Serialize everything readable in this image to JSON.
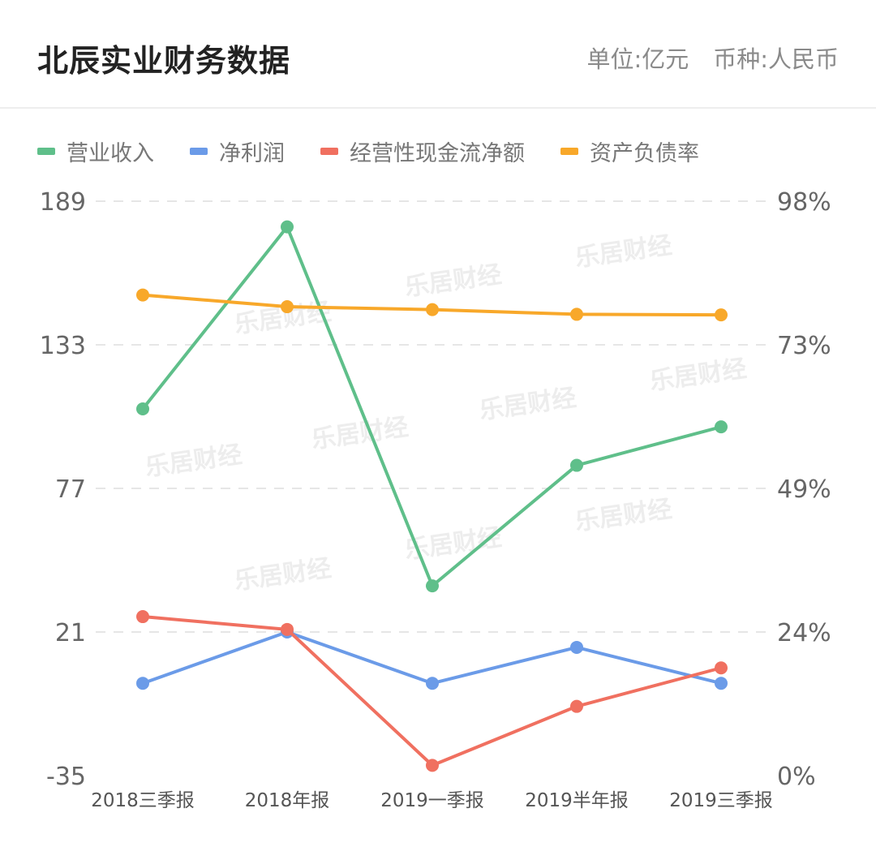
{
  "header": {
    "title": "北辰实业财务数据",
    "unit": "单位:亿元",
    "currency": "币种:人民币"
  },
  "watermark": "乐居财经",
  "colors": {
    "revenue": "#5fbf8a",
    "net_profit": "#6b9be8",
    "cash_flow": "#f07060",
    "debt_ratio": "#f8a82a",
    "grid": "#e6e6e6",
    "axis_text": "#666666"
  },
  "chart_data": {
    "type": "line",
    "categories": [
      "2018三季报",
      "2018年报",
      "2019一季报",
      "2019半年报",
      "2019三季报"
    ],
    "y_left": {
      "ticks": [
        "189",
        "133",
        "77",
        "21",
        "-35"
      ],
      "min": -35,
      "max": 189
    },
    "y_right": {
      "ticks": [
        "98%",
        "73%",
        "49%",
        "24%",
        "0%"
      ],
      "min": 0,
      "max": 98
    },
    "grid": true,
    "legend_position": "top-left",
    "series": [
      {
        "key": "revenue",
        "name": "营业收入",
        "axis": "left",
        "values": [
          108,
          179,
          39,
          86,
          101
        ]
      },
      {
        "key": "net_profit",
        "name": "净利润",
        "axis": "left",
        "values": [
          1,
          21,
          1,
          15,
          1
        ]
      },
      {
        "key": "cash_flow",
        "name": "经营性现金流净额",
        "axis": "left",
        "values": [
          27,
          22,
          -31,
          -8,
          7
        ]
      },
      {
        "key": "debt_ratio",
        "name": "资产负债率",
        "axis": "right",
        "values": [
          82,
          80,
          79.5,
          78.7,
          78.6
        ]
      }
    ]
  }
}
